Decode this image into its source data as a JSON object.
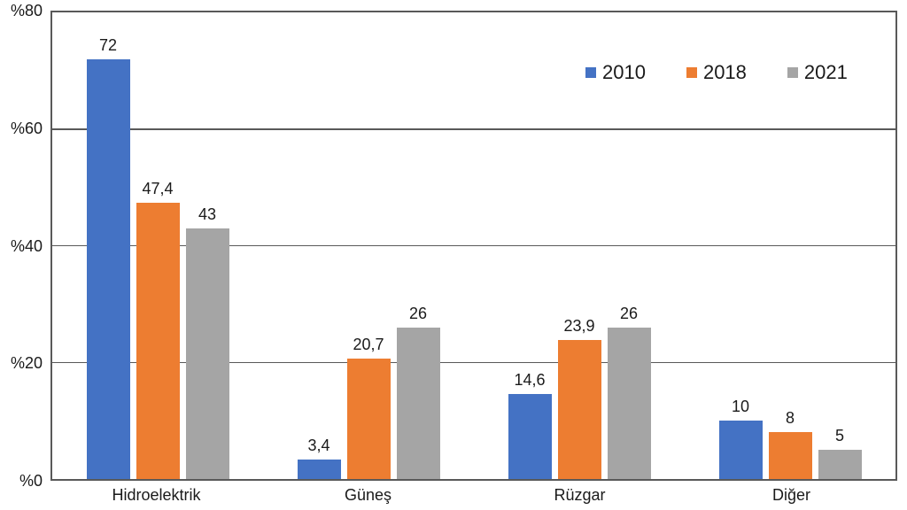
{
  "chart_data": {
    "type": "bar",
    "title": "",
    "xlabel": "",
    "ylabel": "",
    "categories": [
      "Hidroelektrik",
      "Güneş",
      "Rüzgar",
      "Diğer"
    ],
    "series": [
      {
        "name": "2010",
        "color": "#4472C4",
        "values": [
          72,
          3.4,
          14.6,
          10
        ],
        "labels": [
          "72",
          "3,4",
          "14,6",
          "10"
        ]
      },
      {
        "name": "2018",
        "color": "#ED7D31",
        "values": [
          47.4,
          20.7,
          23.9,
          8
        ],
        "labels": [
          "47,4",
          "20,7",
          "23,9",
          "8"
        ]
      },
      {
        "name": "2021",
        "color": "#A5A5A5",
        "values": [
          43,
          26,
          26,
          5
        ],
        "labels": [
          "43",
          "26",
          "26",
          "5"
        ]
      }
    ],
    "ylim": [
      0,
      80
    ],
    "y_ticks": [
      {
        "value": 80,
        "label": "%80"
      },
      {
        "value": 60,
        "label": "%60"
      },
      {
        "value": 40,
        "label": "%40"
      },
      {
        "value": 20,
        "label": "%20"
      },
      {
        "value": 0,
        "label": "%0"
      }
    ],
    "grid": true,
    "legend_position": "top-right",
    "legend_labels": [
      "2010",
      "2018",
      "2021"
    ],
    "axis_color": "#595959",
    "text_color": "#1a1a1a",
    "background_color": "#ffffff"
  }
}
